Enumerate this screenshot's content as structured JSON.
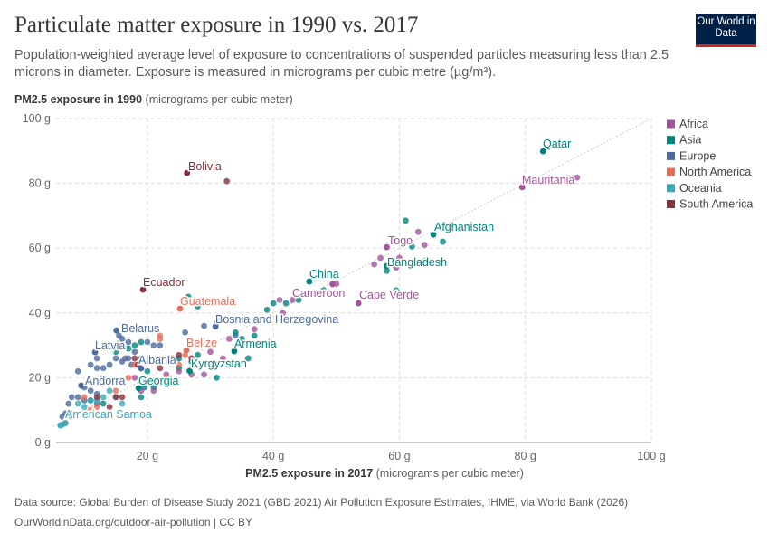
{
  "header": {
    "title": "Particulate matter exposure in 1990 vs. 2017",
    "subtitle": "Population-weighted average level of exposure to concentrations of suspended particles measuring less than 2.5 microns in diameter. Exposure is measured in micrograms per cubic metre (µg/m³).",
    "logo": "Our World in Data"
  },
  "footer": {
    "source_label": "Data source:",
    "source": "Global Burden of Disease Study 2021 (GBD 2021) Air Pollution Exposure Estimates, IHME, via World Bank (2026)",
    "url": "OurWorldinData.org/outdoor-air-pollution | CC BY"
  },
  "chart_data": {
    "type": "scatter",
    "ylabel_bold": "PM2.5 exposure in 1990",
    "ylabel_unit": "(micrograms per cubic meter)",
    "xlabel_bold": "PM2.5 exposure in 2017",
    "xlabel_unit": "(micrograms per cubic meter)",
    "xlim": [
      5,
      100
    ],
    "ylim": [
      0,
      100
    ],
    "xticks": [
      "20 g",
      "40 g",
      "60 g",
      "80 g",
      "100 g"
    ],
    "xtick_values": [
      20,
      40,
      60,
      80,
      100
    ],
    "yticks": [
      "0 g",
      "20 g",
      "40 g",
      "60 g",
      "80 g",
      "100 g"
    ],
    "ytick_values": [
      0,
      20,
      40,
      60,
      80,
      100
    ],
    "grid": true,
    "reference_line": "y = x",
    "legend_placement": "right",
    "legend": [
      {
        "name": "Africa",
        "color": "#a2559c"
      },
      {
        "name": "Asia",
        "color": "#00847e"
      },
      {
        "name": "Europe",
        "color": "#4c6a9c"
      },
      {
        "name": "North America",
        "color": "#e56e5a"
      },
      {
        "name": "Oceania",
        "color": "#38aaba"
      },
      {
        "name": "South America",
        "color": "#883039"
      }
    ],
    "labeled_points": [
      {
        "name": "Qatar",
        "x": 82.8,
        "y": 89.9,
        "region": "Asia"
      },
      {
        "name": "Mauritania",
        "x": 79.5,
        "y": 78.8,
        "region": "Africa"
      },
      {
        "name": "Bolivia",
        "x": 26.3,
        "y": 83.2,
        "region": "South America"
      },
      {
        "name": "Afghanistan",
        "x": 65.4,
        "y": 64.2,
        "region": "Asia"
      },
      {
        "name": "Togo",
        "x": 58,
        "y": 60.3,
        "region": "Africa"
      },
      {
        "name": "Bangladesh",
        "x": 58,
        "y": 54.5,
        "region": "Asia"
      },
      {
        "name": "China",
        "x": 45.7,
        "y": 49.7,
        "region": "Asia"
      },
      {
        "name": "Cameroon",
        "x": 49.4,
        "y": 48.9,
        "region": "Africa"
      },
      {
        "name": "Cape Verde",
        "x": 53.5,
        "y": 43,
        "region": "Africa"
      },
      {
        "name": "Ecuador",
        "x": 19.3,
        "y": 47.2,
        "region": "South America"
      },
      {
        "name": "Guatemala",
        "x": 25.2,
        "y": 41.3,
        "region": "North America"
      },
      {
        "name": "Bosnia and Herzegovina",
        "x": 30.8,
        "y": 35.8,
        "region": "Europe"
      },
      {
        "name": "Belarus",
        "x": 15.1,
        "y": 34.6,
        "region": "Europe"
      },
      {
        "name": "Latvia",
        "x": 11.7,
        "y": 27.9,
        "region": "Europe"
      },
      {
        "name": "Belize",
        "x": 26.2,
        "y": 28.5,
        "region": "North America"
      },
      {
        "name": "Armenia",
        "x": 33.8,
        "y": 28.2,
        "region": "Asia"
      },
      {
        "name": "Albania",
        "x": 19,
        "y": 22.9,
        "region": "Europe"
      },
      {
        "name": "Kyrgyzstan",
        "x": 26.7,
        "y": 22.1,
        "region": "Asia"
      },
      {
        "name": "Andorra",
        "x": 9.5,
        "y": 17.6,
        "region": "Europe"
      },
      {
        "name": "Georgia",
        "x": 18.6,
        "y": 16.8,
        "region": "Asia"
      },
      {
        "name": "American Samoa",
        "x": 6.2,
        "y": 5.3,
        "region": "Oceania"
      }
    ],
    "other_points": [
      [
        88.2,
        81.8,
        "Africa"
      ],
      [
        32.6,
        80.7,
        "South America"
      ],
      [
        66.9,
        62,
        "Asia"
      ],
      [
        7,
        9,
        "Europe"
      ],
      [
        7.5,
        12,
        "Europe"
      ],
      [
        8,
        14,
        "Europe"
      ],
      [
        9,
        14,
        "Europe"
      ],
      [
        10,
        13,
        "Europe"
      ],
      [
        11,
        13,
        "Europe"
      ],
      [
        12,
        12,
        "Europe"
      ],
      [
        9,
        22,
        "Europe"
      ],
      [
        11,
        24,
        "Europe"
      ],
      [
        12,
        26,
        "Europe"
      ],
      [
        12,
        23,
        "Europe"
      ],
      [
        13,
        23,
        "Europe"
      ],
      [
        14,
        24,
        "Europe"
      ],
      [
        15,
        26,
        "Europe"
      ],
      [
        16,
        25,
        "Europe"
      ],
      [
        16.5,
        26,
        "Europe"
      ],
      [
        17,
        26,
        "Europe"
      ],
      [
        17.5,
        24,
        "Europe"
      ],
      [
        18,
        28,
        "Europe"
      ],
      [
        15.5,
        33,
        "Europe"
      ],
      [
        16,
        32,
        "Europe"
      ],
      [
        17,
        31,
        "Europe"
      ],
      [
        20,
        31,
        "Europe"
      ],
      [
        21,
        30,
        "Europe"
      ],
      [
        22,
        30,
        "Europe"
      ],
      [
        26,
        34,
        "Europe"
      ],
      [
        29,
        36,
        "Europe"
      ],
      [
        31,
        37,
        "Europe"
      ],
      [
        34,
        33,
        "Europe"
      ],
      [
        10,
        17,
        "Europe"
      ],
      [
        11,
        16,
        "Europe"
      ],
      [
        12,
        15,
        "Europe"
      ],
      [
        8,
        8,
        "Europe"
      ],
      [
        6.5,
        8,
        "Europe"
      ],
      [
        13,
        20,
        "Europe"
      ],
      [
        19,
        26,
        "Europe"
      ],
      [
        15,
        28,
        "Asia"
      ],
      [
        17,
        29,
        "Asia"
      ],
      [
        18,
        30,
        "Asia"
      ],
      [
        19,
        31,
        "Asia"
      ],
      [
        20,
        22,
        "Asia"
      ],
      [
        19.5,
        17,
        "Asia"
      ],
      [
        21,
        17,
        "Asia"
      ],
      [
        25,
        26,
        "Asia"
      ],
      [
        27,
        25,
        "Asia"
      ],
      [
        28,
        27,
        "Asia"
      ],
      [
        31,
        20,
        "Asia"
      ],
      [
        34,
        34,
        "Asia"
      ],
      [
        35,
        32,
        "Asia"
      ],
      [
        39,
        41,
        "Asia"
      ],
      [
        40,
        43,
        "Asia"
      ],
      [
        42,
        43,
        "Asia"
      ],
      [
        44,
        44,
        "Asia"
      ],
      [
        48,
        47,
        "Asia"
      ],
      [
        58,
        53,
        "Asia"
      ],
      [
        61,
        68.5,
        "Asia"
      ],
      [
        62,
        60.5,
        "Asia"
      ],
      [
        64,
        56,
        "Asia"
      ],
      [
        59.5,
        47,
        "Asia"
      ],
      [
        37,
        33,
        "Asia"
      ],
      [
        26.5,
        45,
        "Asia"
      ],
      [
        28,
        42,
        "Asia"
      ],
      [
        19,
        14,
        "Asia"
      ],
      [
        25,
        23,
        "Asia"
      ],
      [
        36,
        26,
        "Asia"
      ],
      [
        13,
        12,
        "Asia"
      ],
      [
        30,
        28,
        "Africa"
      ],
      [
        32,
        26,
        "Africa"
      ],
      [
        33,
        32,
        "Africa"
      ],
      [
        37,
        35,
        "Africa"
      ],
      [
        41,
        44,
        "Africa"
      ],
      [
        43,
        44,
        "Africa"
      ],
      [
        50,
        49,
        "Africa"
      ],
      [
        56,
        55,
        "Africa"
      ],
      [
        57,
        57,
        "Africa"
      ],
      [
        59,
        56,
        "Africa"
      ],
      [
        60,
        57,
        "Africa"
      ],
      [
        63,
        65,
        "Africa"
      ],
      [
        64,
        61,
        "Africa"
      ],
      [
        59.5,
        54,
        "Africa"
      ],
      [
        25,
        22,
        "Africa"
      ],
      [
        27,
        21,
        "Africa"
      ],
      [
        29,
        21,
        "Africa"
      ],
      [
        21,
        19,
        "Africa"
      ],
      [
        21,
        16,
        "Africa"
      ],
      [
        19,
        16,
        "Africa"
      ],
      [
        18,
        20,
        "Africa"
      ],
      [
        23,
        21,
        "Africa"
      ],
      [
        41.5,
        40,
        "Africa"
      ],
      [
        10,
        14,
        "North America"
      ],
      [
        11,
        10,
        "North America"
      ],
      [
        12,
        11,
        "North America"
      ],
      [
        15,
        16,
        "North America"
      ],
      [
        17,
        20,
        "North America"
      ],
      [
        18,
        24,
        "North America"
      ],
      [
        22,
        33,
        "North America"
      ],
      [
        22,
        32,
        "North America"
      ],
      [
        26,
        27,
        "North America"
      ],
      [
        23,
        20,
        "North America"
      ],
      [
        8,
        9,
        "North America"
      ],
      [
        7,
        6,
        "North America"
      ],
      [
        22,
        25,
        "North America"
      ],
      [
        24,
        26,
        "North America"
      ],
      [
        25,
        24,
        "North America"
      ],
      [
        6.5,
        5.5,
        "Oceania"
      ],
      [
        7,
        6,
        "Oceania"
      ],
      [
        10,
        11,
        "Oceania"
      ],
      [
        11,
        13,
        "Oceania"
      ],
      [
        12,
        13,
        "Oceania"
      ],
      [
        13,
        14,
        "Oceania"
      ],
      [
        14,
        16,
        "Oceania"
      ],
      [
        15,
        14,
        "Oceania"
      ],
      [
        16,
        12,
        "Oceania"
      ],
      [
        9,
        12,
        "Oceania"
      ],
      [
        12,
        14,
        "South America"
      ],
      [
        14,
        11,
        "South America"
      ],
      [
        15,
        14,
        "South America"
      ],
      [
        18,
        26,
        "South America"
      ],
      [
        18.5,
        24,
        "South America"
      ],
      [
        22,
        23,
        "South America"
      ],
      [
        25,
        27,
        "South America"
      ],
      [
        27,
        26,
        "South America"
      ],
      [
        20,
        25,
        "South America"
      ],
      [
        16,
        14,
        "South America"
      ]
    ]
  }
}
